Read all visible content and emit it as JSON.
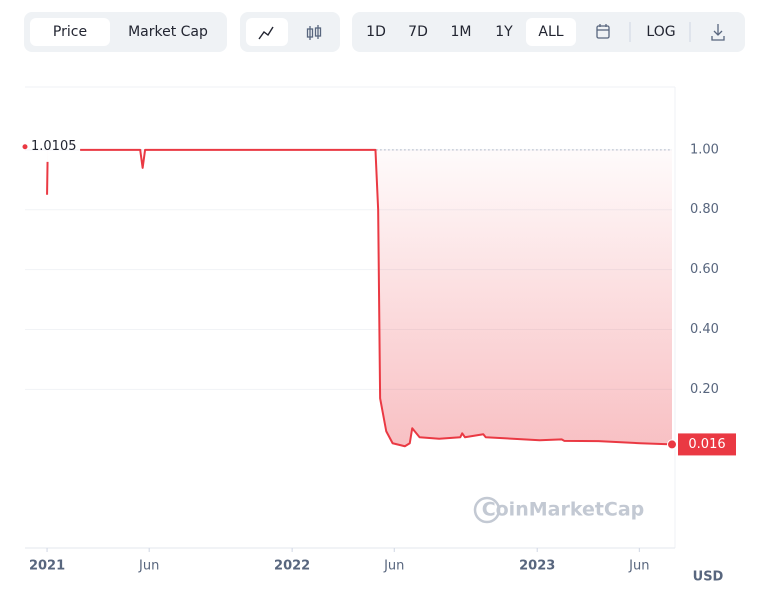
{
  "toolbar": {
    "tabs": [
      "Price",
      "Market Cap"
    ],
    "ranges": [
      "1D",
      "7D",
      "1M",
      "1Y",
      "ALL"
    ],
    "log": "LOG"
  },
  "chart_data": {
    "type": "line",
    "x": [
      2021.0,
      2021.002,
      null,
      2021.135,
      2021.38,
      2021.39,
      2021.4,
      2021.6,
      2021.8,
      2022.0,
      2022.2,
      2022.34,
      2022.351,
      2022.359,
      2022.384,
      2022.41,
      2022.46,
      2022.48,
      2022.49,
      2022.52,
      2022.6,
      2022.686,
      2022.694,
      2022.705,
      2022.78,
      2022.79,
      2022.9,
      2023.01,
      2023.1,
      2023.11,
      2023.25,
      2023.42,
      2023.55
    ],
    "series": [
      {
        "name": "Price",
        "color": "#ea3943",
        "values": [
          0.85,
          0.96,
          null,
          1.0,
          1.0,
          0.94,
          1.0,
          1.0,
          1.0,
          1.0,
          1.0,
          1.0,
          0.8,
          0.17,
          0.06,
          0.02,
          0.01,
          0.02,
          0.07,
          0.04,
          0.035,
          0.04,
          0.053,
          0.04,
          0.05,
          0.04,
          0.035,
          0.03,
          0.033,
          0.028,
          0.027,
          0.02,
          0.016
        ]
      }
    ],
    "baseline": 1.0,
    "high": 1.0105,
    "current": 0.016,
    "xlim": [
      2020.91,
      2023.55
    ],
    "xticks": [
      {
        "value": 2021,
        "label": "2021"
      },
      {
        "value": 2021.4167,
        "label": "Jun"
      },
      {
        "value": 2022,
        "label": "2022"
      },
      {
        "value": 2022.4167,
        "label": "Jun"
      },
      {
        "value": 2023,
        "label": "2023"
      },
      {
        "value": 2023.4167,
        "label": "Jun"
      }
    ],
    "ylim": [
      -0.33,
      1.21
    ],
    "yticks": [
      {
        "value": 1,
        "label": "1.00"
      },
      {
        "value": 0.8,
        "label": "0.80"
      },
      {
        "value": 0.6,
        "label": "0.60"
      },
      {
        "value": 0.4,
        "label": "0.40"
      },
      {
        "value": 0.2,
        "label": "0.20"
      }
    ],
    "grid": true,
    "unit": "USD",
    "watermark": "CoinMarketCap"
  }
}
